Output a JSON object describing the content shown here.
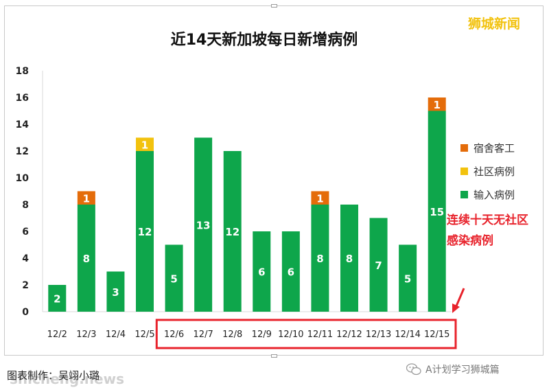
{
  "brand": "狮城新闻",
  "chart_data": {
    "type": "bar",
    "stacked": true,
    "title": "近14天新加坡每日新增病例",
    "categories": [
      "12/2",
      "12/3",
      "12/4",
      "12/5",
      "12/6",
      "12/7",
      "12/8",
      "12/9",
      "12/10",
      "12/11",
      "12/12",
      "12/13",
      "12/14",
      "12/15"
    ],
    "series": [
      {
        "name": "输入病例",
        "color": "#0ea64b",
        "values": [
          2,
          8,
          3,
          12,
          5,
          13,
          12,
          6,
          6,
          8,
          8,
          7,
          5,
          15
        ]
      },
      {
        "name": "社区病例",
        "color": "#f2c20e",
        "values": [
          0,
          0,
          0,
          1,
          0,
          0,
          0,
          0,
          0,
          0,
          0,
          0,
          0,
          0
        ]
      },
      {
        "name": "宿舍客工",
        "color": "#e46c0a",
        "values": [
          0,
          1,
          0,
          0,
          0,
          0,
          0,
          0,
          0,
          1,
          0,
          0,
          0,
          1
        ]
      }
    ],
    "legend_order": [
      "宿舍客工",
      "社区病例",
      "输入病例"
    ],
    "yticks": [
      0,
      2,
      4,
      6,
      8,
      10,
      12,
      14,
      16,
      18
    ],
    "ylim": [
      0,
      18
    ],
    "grid": false,
    "legend_position": "right",
    "highlight_categories": [
      "12/6",
      "12/15"
    ],
    "highlight_color": "#e8232c",
    "annotation": "连续十天无社区感染病例"
  },
  "caption": "图表制作：吴翊小璐",
  "watermark": "shicheng.news",
  "wechat_label": "A计划学习狮城篇"
}
